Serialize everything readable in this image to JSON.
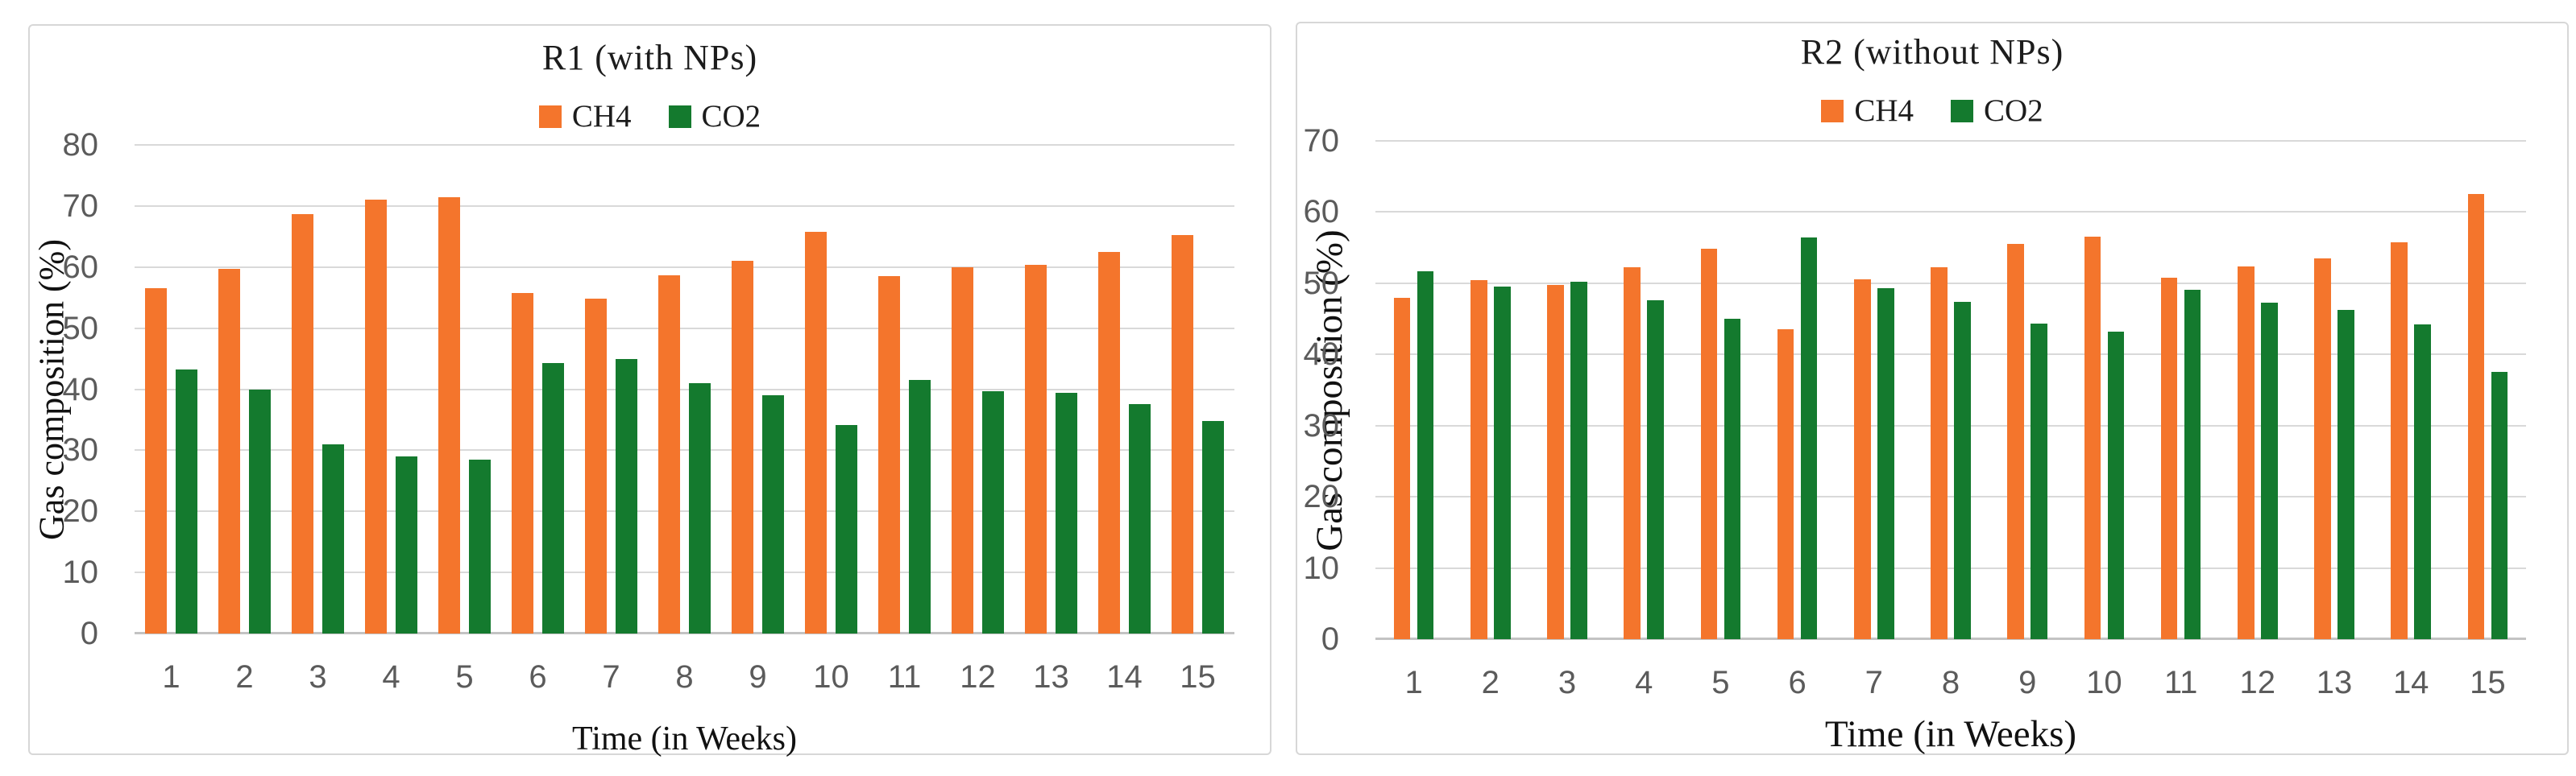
{
  "page": {
    "background": "#ffffff"
  },
  "chart_data": [
    {
      "type": "bar",
      "title": "R1 (with NPs)",
      "xlabel": "Time (in Weeks)",
      "ylabel": "Gas composition (%)",
      "categories": [
        "1",
        "2",
        "3",
        "4",
        "5",
        "6",
        "7",
        "8",
        "9",
        "10",
        "11",
        "12",
        "13",
        "14",
        "15"
      ],
      "series": [
        {
          "name": "CH4",
          "color": "#F4752C",
          "values": [
            56.5,
            59.7,
            68.7,
            71.0,
            71.5,
            55.8,
            54.8,
            58.7,
            61.0,
            65.8,
            58.5,
            60.0,
            60.4,
            62.5,
            65.2
          ]
        },
        {
          "name": "CO2",
          "color": "#147A2E",
          "values": [
            43.2,
            40.0,
            31.0,
            29.0,
            28.5,
            44.3,
            45.0,
            41.0,
            39.0,
            34.2,
            41.5,
            39.7,
            39.4,
            37.5,
            34.8
          ]
        }
      ],
      "ylim": [
        0,
        80
      ],
      "ytick_step": 10,
      "grid": true,
      "legend_position": "top-center"
    },
    {
      "type": "bar",
      "title": "R2 (without  NPs)",
      "xlabel": "Time (in Weeks)",
      "ylabel": "Gas composition (%)",
      "categories": [
        "1",
        "2",
        "3",
        "4",
        "5",
        "6",
        "7",
        "8",
        "9",
        "10",
        "11",
        "12",
        "13",
        "14",
        "15"
      ],
      "series": [
        {
          "name": "CH4",
          "color": "#F4752C",
          "values": [
            48.0,
            50.4,
            49.8,
            52.2,
            54.8,
            43.5,
            50.5,
            52.3,
            55.5,
            56.6,
            50.8,
            52.4,
            53.5,
            55.7,
            62.5
          ]
        },
        {
          "name": "CO2",
          "color": "#147A2E",
          "values": [
            51.7,
            49.5,
            50.2,
            47.6,
            45.0,
            56.4,
            49.3,
            47.4,
            44.3,
            43.2,
            49.1,
            47.3,
            46.3,
            44.2,
            37.6
          ]
        }
      ],
      "ylim": [
        0,
        70
      ],
      "ytick_step": 10,
      "grid": true,
      "legend_position": "top-center"
    }
  ]
}
